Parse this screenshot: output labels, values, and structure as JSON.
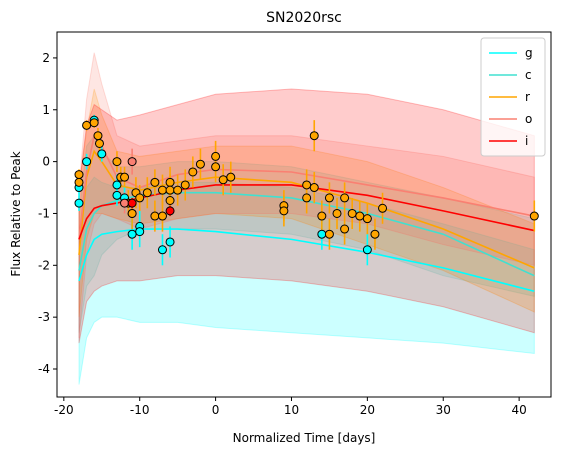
{
  "chart_data": {
    "type": "line",
    "title": "SN2020rsc",
    "xlabel": "Normalized Time [days]",
    "ylabel": "Flux Relative to Peak",
    "xlim": [
      -20.9,
      44.2
    ],
    "ylim": [
      -4.54,
      2.5
    ],
    "xticks": [
      -20,
      -10,
      0,
      10,
      20,
      30,
      40
    ],
    "yticks": [
      -4,
      -3,
      -2,
      -1,
      0,
      1,
      2
    ],
    "legend": "upper right",
    "x": [
      -18,
      -17,
      -16,
      -15,
      -13,
      -10,
      -5,
      0,
      10,
      20,
      30,
      42
    ],
    "series": [
      {
        "name": "g",
        "color": "#00ffff",
        "values": [
          -2.3,
          -1.8,
          -1.5,
          -1.4,
          -1.35,
          -1.3,
          -1.3,
          -1.35,
          -1.5,
          -1.75,
          -2.05,
          -2.5
        ],
        "upper": [
          -1.5,
          -0.5,
          -0.3,
          -0.4,
          -0.5,
          -0.5,
          -0.4,
          -0.4,
          -0.5,
          -0.8,
          -1.2,
          -1.7
        ],
        "lower": [
          -4.3,
          -3.4,
          -3.1,
          -3.0,
          -3.0,
          -3.1,
          -3.1,
          -3.2,
          -3.3,
          -3.4,
          -3.5,
          -3.7
        ],
        "obs_x": [
          -18,
          -18,
          -17,
          -16,
          -15,
          -13,
          -13,
          -12,
          -11,
          -11,
          -10,
          -10,
          -7,
          -6,
          14,
          20
        ],
        "obs_y": [
          -0.5,
          -0.8,
          0.0,
          0.8,
          0.15,
          -0.45,
          -0.65,
          -0.7,
          -1.4,
          -1.0,
          -1.25,
          -1.35,
          -1.7,
          -1.55,
          -1.4,
          -1.7
        ],
        "obs_err": [
          0.15,
          0.15,
          0.15,
          0.1,
          0.15,
          0.2,
          0.2,
          0.25,
          0.3,
          0.3,
          0.3,
          0.3,
          0.3,
          0.3,
          0.3,
          0.3
        ]
      },
      {
        "name": "c",
        "color": "#40e0d0",
        "values": [
          -2.1,
          -1.3,
          -1.0,
          -0.85,
          -0.75,
          -0.65,
          -0.6,
          -0.6,
          -0.7,
          -1.0,
          -1.4,
          -2.2
        ],
        "upper": [
          -1.0,
          0.3,
          0.5,
          0.2,
          -0.1,
          -0.1,
          0.0,
          0.0,
          -0.1,
          -0.4,
          -0.7,
          -1.1
        ],
        "lower": [
          -3.3,
          -2.4,
          -2.2,
          -1.8,
          -1.5,
          -1.3,
          -1.3,
          -1.3,
          -1.4,
          -1.7,
          -2.2,
          -2.6
        ],
        "obs_x": [],
        "obs_y": [],
        "obs_err": []
      },
      {
        "name": "r",
        "color": "#ffa500",
        "values": [
          -1.8,
          -0.3,
          0.2,
          0.0,
          -0.45,
          -0.55,
          -0.4,
          -0.3,
          -0.4,
          -0.8,
          -1.3,
          -2.05
        ],
        "upper": [
          -0.5,
          0.6,
          1.4,
          0.9,
          0.2,
          0.1,
          0.2,
          0.3,
          0.3,
          0.0,
          -0.5,
          -1.2
        ],
        "lower": [
          -3.0,
          -1.5,
          -1.0,
          -1.0,
          -1.1,
          -1.2,
          -1.1,
          -1.0,
          -1.1,
          -1.6,
          -2.1,
          -2.9
        ],
        "obs_x": [
          -18,
          -18,
          -17,
          -16,
          -15.5,
          -15.3,
          -13,
          -12.5,
          -12,
          -11.5,
          -11,
          -10.5,
          -10,
          -9,
          -8,
          -8,
          -7,
          -7,
          -6,
          -6,
          -6,
          -5,
          -4,
          -3,
          -2,
          0,
          0,
          1,
          2,
          9,
          9,
          12,
          12,
          13,
          13,
          14,
          15,
          15,
          16,
          17,
          17,
          18,
          19,
          20,
          21,
          22,
          42
        ],
        "obs_y": [
          -0.25,
          -0.4,
          0.7,
          0.75,
          0.5,
          0.35,
          0.0,
          -0.3,
          -0.3,
          -0.8,
          -1.0,
          -0.6,
          -0.7,
          -0.6,
          -1.05,
          -0.4,
          -0.55,
          -1.05,
          -0.4,
          -0.55,
          -0.75,
          -0.55,
          -0.45,
          -0.2,
          -0.05,
          0.1,
          -0.1,
          -0.35,
          -0.3,
          -0.85,
          -0.95,
          -0.45,
          -0.7,
          0.5,
          -0.5,
          -1.05,
          -0.7,
          -1.4,
          -1.0,
          -0.7,
          -1.3,
          -1.0,
          -1.05,
          -1.1,
          -1.4,
          -0.9,
          -1.05
        ],
        "obs_err": [
          0.1,
          0.1,
          0.1,
          0.1,
          0.15,
          0.15,
          0.2,
          0.2,
          0.2,
          0.25,
          0.3,
          0.3,
          0.25,
          0.3,
          0.3,
          0.25,
          0.3,
          0.3,
          0.3,
          0.3,
          0.3,
          0.3,
          0.3,
          0.3,
          0.3,
          0.3,
          0.3,
          0.3,
          0.3,
          0.3,
          0.3,
          0.3,
          0.3,
          0.3,
          0.3,
          0.3,
          0.3,
          0.3,
          0.3,
          0.3,
          0.3,
          0.3,
          0.3,
          0.3,
          0.3,
          0.3,
          0.3
        ]
      },
      {
        "name": "o",
        "color": "#fa8072",
        "values": [
          -1.5,
          -0.2,
          0.5,
          0.3,
          -0.3,
          -0.5,
          -0.25,
          -0.15,
          -0.2,
          -0.45,
          -0.7,
          -1.05
        ],
        "upper": [
          -0.5,
          1.2,
          2.1,
          1.5,
          0.5,
          0.3,
          0.4,
          0.5,
          0.5,
          0.3,
          0.1,
          -0.3
        ],
        "lower": [
          -3.4,
          -1.8,
          -1.2,
          -1.0,
          -1.1,
          -1.3,
          -1.1,
          -1.0,
          -1.0,
          -1.2,
          -1.6,
          -2.0
        ],
        "obs_x": [
          -11,
          -12
        ],
        "obs_y": [
          0.0,
          -0.8
        ],
        "obs_err": [
          0.25,
          0.2
        ]
      },
      {
        "name": "i",
        "color": "#ff0000",
        "values": [
          -1.5,
          -1.1,
          -0.9,
          -0.85,
          -0.8,
          -0.7,
          -0.55,
          -0.45,
          -0.45,
          -0.65,
          -0.95,
          -1.33
        ],
        "upper": [
          -0.5,
          0.7,
          1.1,
          1.0,
          0.8,
          0.9,
          1.1,
          1.3,
          1.4,
          1.3,
          1.0,
          0.5
        ],
        "lower": [
          -3.5,
          -2.7,
          -2.5,
          -2.4,
          -2.3,
          -2.3,
          -2.2,
          -2.2,
          -2.3,
          -2.5,
          -2.8,
          -3.3
        ],
        "obs_x": [
          -6,
          -11
        ],
        "obs_y": [
          -0.95,
          -0.8
        ],
        "obs_err": [
          0.1,
          0.1
        ]
      }
    ]
  }
}
